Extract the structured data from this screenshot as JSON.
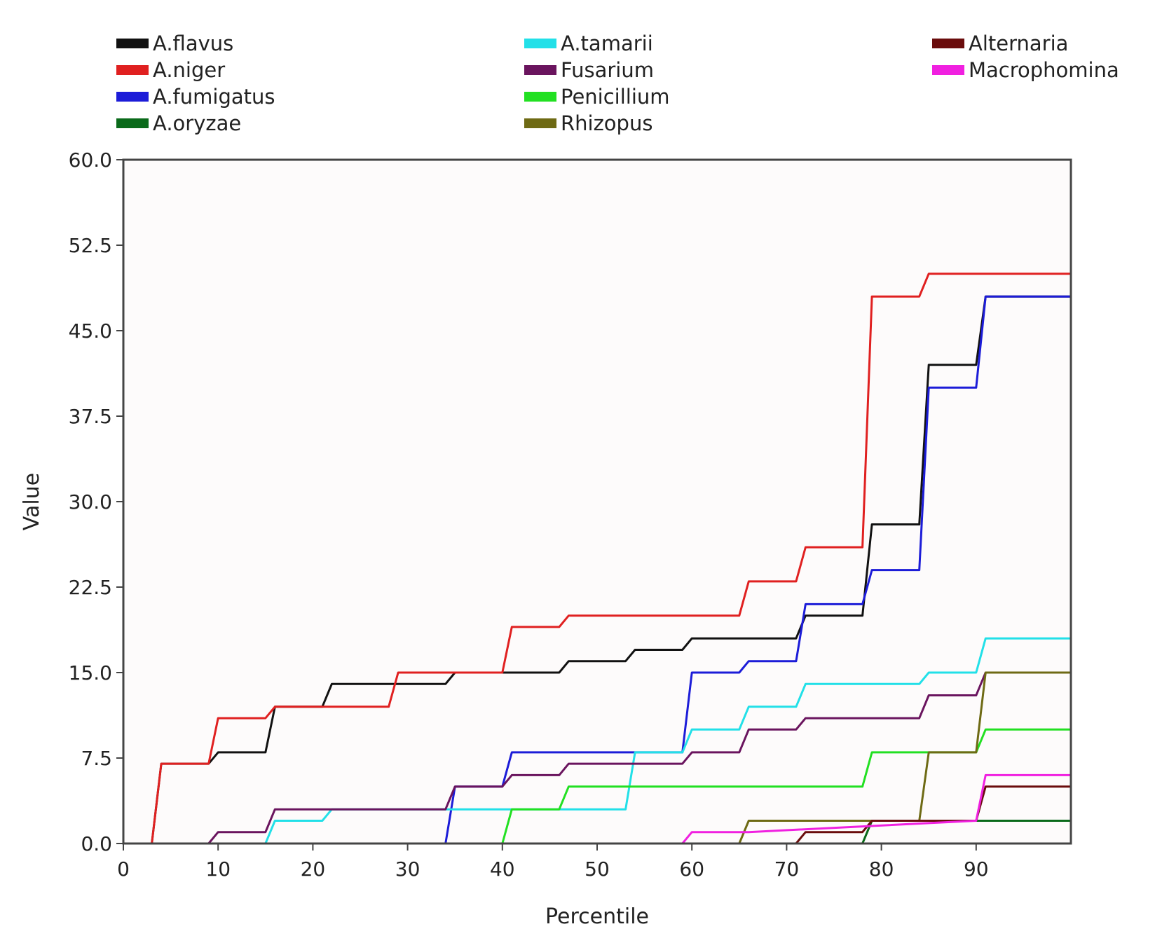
{
  "chart_data": {
    "type": "line",
    "title": "",
    "xlabel": "Percentile",
    "ylabel": "Value",
    "xlim": [
      0,
      100
    ],
    "ylim": [
      0,
      60
    ],
    "xticks": [
      "0",
      "10",
      "20",
      "30",
      "40",
      "50",
      "60",
      "70",
      "80",
      "90"
    ],
    "yticks": [
      "0.0",
      "7.5",
      "15.0",
      "22.5",
      "30.0",
      "37.5",
      "45.0",
      "52.5",
      "60.0"
    ],
    "grid": false,
    "legend_position": "top",
    "series": [
      {
        "name": "A.flavus",
        "color": "#111111",
        "points": [
          [
            0,
            0
          ],
          [
            3,
            0
          ],
          [
            4,
            7
          ],
          [
            9,
            7
          ],
          [
            10,
            8
          ],
          [
            15,
            8
          ],
          [
            16,
            12
          ],
          [
            21,
            12
          ],
          [
            22,
            14
          ],
          [
            34,
            14
          ],
          [
            35,
            15
          ],
          [
            46,
            15
          ],
          [
            47,
            16
          ],
          [
            53,
            16
          ],
          [
            54,
            17
          ],
          [
            59,
            17
          ],
          [
            60,
            18
          ],
          [
            71,
            18
          ],
          [
            72,
            20
          ],
          [
            78,
            20
          ],
          [
            79,
            28
          ],
          [
            84,
            28
          ],
          [
            85,
            42
          ],
          [
            90,
            42
          ],
          [
            91,
            48
          ],
          [
            100,
            48
          ]
        ]
      },
      {
        "name": "A.niger",
        "color": "#e02020",
        "points": [
          [
            0,
            0
          ],
          [
            3,
            0
          ],
          [
            4,
            7
          ],
          [
            9,
            7
          ],
          [
            10,
            11
          ],
          [
            15,
            11
          ],
          [
            16,
            12
          ],
          [
            28,
            12
          ],
          [
            29,
            15
          ],
          [
            40,
            15
          ],
          [
            41,
            19
          ],
          [
            46,
            19
          ],
          [
            47,
            20
          ],
          [
            65,
            20
          ],
          [
            66,
            23
          ],
          [
            71,
            23
          ],
          [
            72,
            26
          ],
          [
            78,
            26
          ],
          [
            79,
            48
          ],
          [
            84,
            48
          ],
          [
            85,
            50
          ],
          [
            100,
            50
          ]
        ]
      },
      {
        "name": "A.fumigatus",
        "color": "#1c1cd8",
        "points": [
          [
            0,
            0
          ],
          [
            34,
            0
          ],
          [
            35,
            5
          ],
          [
            40,
            5
          ],
          [
            41,
            8
          ],
          [
            59,
            8
          ],
          [
            60,
            15
          ],
          [
            65,
            15
          ],
          [
            66,
            16
          ],
          [
            71,
            16
          ],
          [
            72,
            21
          ],
          [
            78,
            21
          ],
          [
            79,
            24
          ],
          [
            84,
            24
          ],
          [
            85,
            40
          ],
          [
            90,
            40
          ],
          [
            91,
            48
          ],
          [
            100,
            48
          ]
        ]
      },
      {
        "name": "A.oryzae",
        "color": "#0a6a1a",
        "points": [
          [
            0,
            0
          ],
          [
            78,
            0
          ],
          [
            79,
            2
          ],
          [
            100,
            2
          ]
        ]
      },
      {
        "name": "A.tamarii",
        "color": "#22e0e8",
        "points": [
          [
            0,
            0
          ],
          [
            15,
            0
          ],
          [
            16,
            2
          ],
          [
            21,
            2
          ],
          [
            22,
            3
          ],
          [
            53,
            3
          ],
          [
            54,
            8
          ],
          [
            59,
            8
          ],
          [
            60,
            10
          ],
          [
            65,
            10
          ],
          [
            66,
            12
          ],
          [
            71,
            12
          ],
          [
            72,
            14
          ],
          [
            84,
            14
          ],
          [
            85,
            15
          ],
          [
            90,
            15
          ],
          [
            91,
            18
          ],
          [
            100,
            18
          ]
        ]
      },
      {
        "name": "Fusarium",
        "color": "#6a145e",
        "points": [
          [
            0,
            0
          ],
          [
            9,
            0
          ],
          [
            10,
            1
          ],
          [
            15,
            1
          ],
          [
            16,
            3
          ],
          [
            34,
            3
          ],
          [
            35,
            5
          ],
          [
            40,
            5
          ],
          [
            41,
            6
          ],
          [
            46,
            6
          ],
          [
            47,
            7
          ],
          [
            59,
            7
          ],
          [
            60,
            8
          ],
          [
            65,
            8
          ],
          [
            66,
            10
          ],
          [
            71,
            10
          ],
          [
            72,
            11
          ],
          [
            84,
            11
          ],
          [
            85,
            13
          ],
          [
            90,
            13
          ],
          [
            91,
            15
          ],
          [
            100,
            15
          ]
        ]
      },
      {
        "name": "Penicillium",
        "color": "#22e022",
        "points": [
          [
            0,
            0
          ],
          [
            40,
            0
          ],
          [
            41,
            3
          ],
          [
            46,
            3
          ],
          [
            47,
            5
          ],
          [
            78,
            5
          ],
          [
            79,
            8
          ],
          [
            90,
            8
          ],
          [
            91,
            10
          ],
          [
            100,
            10
          ]
        ]
      },
      {
        "name": "Rhizopus",
        "color": "#6e6a14",
        "points": [
          [
            0,
            0
          ],
          [
            65,
            0
          ],
          [
            66,
            2
          ],
          [
            84,
            2
          ],
          [
            85,
            8
          ],
          [
            90,
            8
          ],
          [
            91,
            15
          ],
          [
            100,
            15
          ]
        ]
      },
      {
        "name": "Alternaria",
        "color": "#6a0c0c",
        "points": [
          [
            0,
            0
          ],
          [
            71,
            0
          ],
          [
            72,
            1
          ],
          [
            78,
            1
          ],
          [
            79,
            2
          ],
          [
            90,
            2
          ],
          [
            91,
            5
          ],
          [
            100,
            5
          ]
        ]
      },
      {
        "name": "Macrophomina",
        "color": "#f020e0",
        "points": [
          [
            0,
            0
          ],
          [
            59,
            0
          ],
          [
            60,
            1
          ],
          [
            65,
            1
          ],
          [
            66,
            1
          ],
          [
            90,
            2
          ],
          [
            91,
            6
          ],
          [
            100,
            6
          ]
        ]
      }
    ]
  }
}
